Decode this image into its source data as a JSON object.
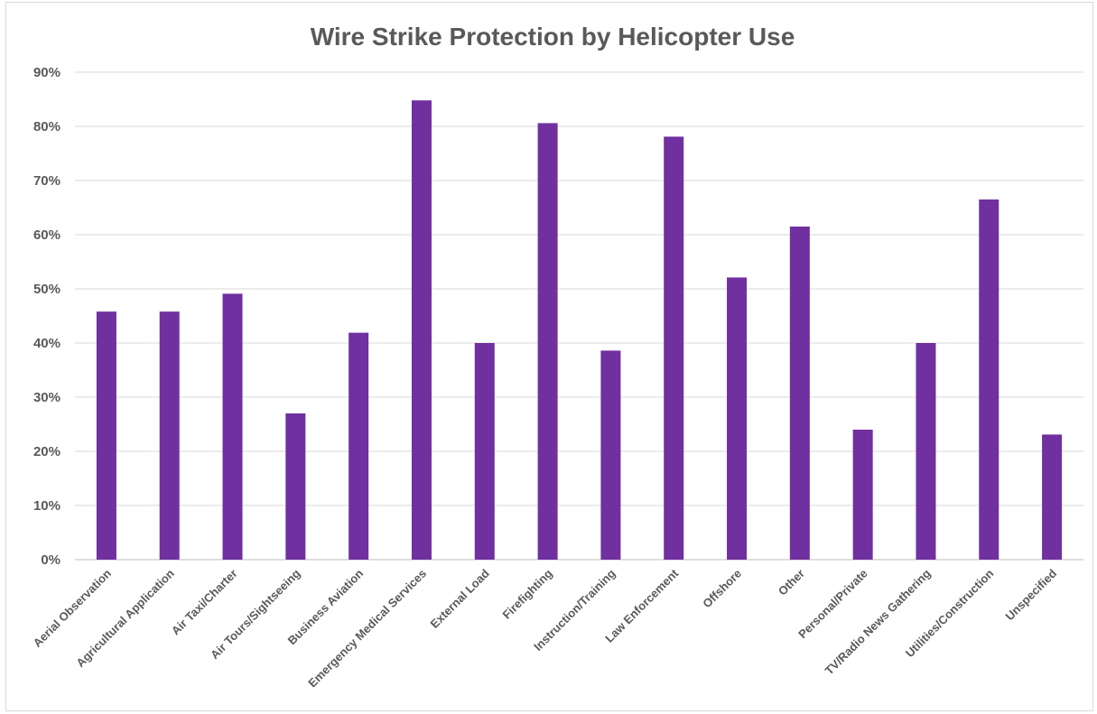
{
  "chart_data": {
    "type": "bar",
    "title": "Wire Strike Protection by Helicopter Use",
    "xlabel": "",
    "ylabel": "",
    "ylim": [
      0,
      90
    ],
    "ytick_step": 10,
    "ytick_format": "percent",
    "grid": true,
    "legend": "none",
    "bar_color": "#7030a0",
    "categories": [
      "Aerial Observation",
      "Agricultural Application",
      "Air Taxi/Charter",
      "Air Tours/Sightseeing",
      "Business Aviation",
      "Emergency Medical Services",
      "External Load",
      "Firefighting",
      "Instruction/Training",
      "Law Enforcement",
      "Offshore",
      "Other",
      "Personal/Private",
      "TV/Radio News Gathering",
      "Utilities/Construction",
      "Unspecified"
    ],
    "values": [
      45.8,
      45.8,
      49.1,
      27.0,
      41.9,
      84.8,
      40.0,
      80.6,
      38.6,
      78.1,
      52.1,
      61.5,
      24.0,
      40.0,
      66.5,
      23.1
    ]
  }
}
